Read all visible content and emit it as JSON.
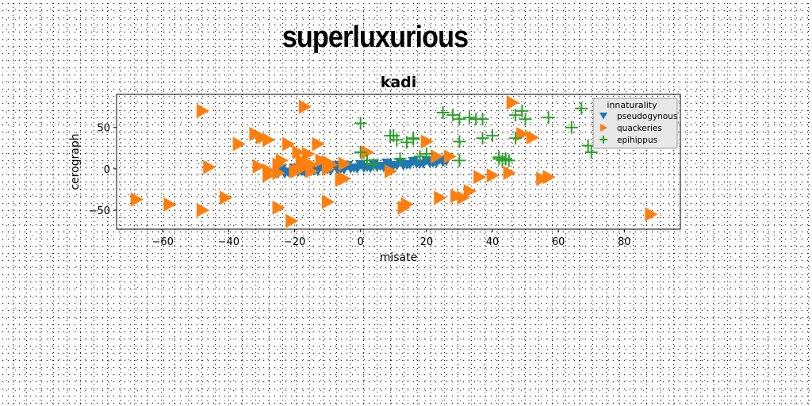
{
  "page": {
    "title": "superluxurious"
  },
  "chart_data": {
    "type": "scatter",
    "title": "kadi",
    "xlabel": "misate",
    "ylabel": "cerograph",
    "xlim": [
      -74,
      97
    ],
    "ylim": [
      -73,
      90
    ],
    "xticks": [
      -60,
      -40,
      -20,
      0,
      20,
      40,
      60,
      80
    ],
    "yticks": [
      -50,
      0,
      50
    ],
    "grid": false,
    "legend": {
      "title": "innaturality",
      "placement": "top-right"
    },
    "series": [
      {
        "name": "pseudogynous",
        "marker": "triangle-down",
        "color": "#1f77b4",
        "x": [
          -25,
          -23,
          -21,
          -19,
          -17,
          -15,
          -13,
          -11,
          -9,
          -7,
          -5,
          -3,
          -1,
          1,
          3,
          5,
          7,
          9,
          11,
          13,
          15,
          17,
          19,
          21,
          23,
          25,
          -24,
          -20,
          -16,
          -12,
          -8,
          -4,
          0,
          4,
          8,
          12,
          16,
          20,
          24,
          -22,
          -18,
          -14,
          -10,
          -6,
          -2,
          2,
          6,
          10,
          14,
          18,
          22,
          26
        ],
        "y": [
          -6,
          -6,
          -5,
          -4,
          -4,
          -3,
          -3,
          -2,
          -2,
          -1,
          -1,
          0,
          0,
          1,
          1,
          2,
          2,
          3,
          4,
          4,
          5,
          6,
          6,
          7,
          7,
          8,
          0,
          1,
          2,
          3,
          4,
          4,
          5,
          6,
          7,
          8,
          9,
          10,
          11,
          -4,
          -3,
          -2,
          -1,
          0,
          1,
          2,
          3,
          4,
          5,
          6,
          7,
          9
        ]
      },
      {
        "name": "quackeries",
        "marker": "triangle-right",
        "color": "#ff7f0e",
        "x": [
          -48,
          -17,
          -68,
          -58,
          -48,
          -41,
          -37,
          -32,
          -30,
          -28,
          -25,
          -22,
          -21,
          -19,
          -18,
          -16,
          -15,
          -13,
          -12,
          -10,
          -9,
          -6,
          -5,
          -15,
          -17,
          -25,
          -28,
          -31,
          -24,
          -20,
          -10,
          2,
          9,
          14,
          20,
          23,
          24,
          27,
          29,
          31,
          33,
          36,
          40,
          45,
          46,
          49,
          52,
          55,
          57,
          88,
          -46,
          -25,
          -19,
          -10,
          -5,
          13,
          -28
        ],
        "y": [
          70,
          75,
          -37,
          -43,
          -50,
          -35,
          30,
          42,
          38,
          35,
          -47,
          30,
          -63,
          20,
          10,
          18,
          5,
          30,
          10,
          -40,
          5,
          -13,
          6,
          -3,
          3,
          -5,
          -8,
          3,
          10,
          -3,
          0,
          20,
          -3,
          -43,
          33,
          15,
          -35,
          15,
          -33,
          -35,
          -27,
          -10,
          -8,
          -5,
          80,
          42,
          38,
          -12,
          -10,
          -55,
          2,
          5,
          -2,
          8,
          -12,
          -47,
          -2
        ]
      },
      {
        "name": "epihippus",
        "marker": "plus",
        "color": "#2ca02c",
        "x": [
          0,
          10,
          11,
          16,
          25,
          28,
          30,
          33,
          35,
          37,
          40,
          42,
          44,
          47,
          49,
          50,
          57,
          64,
          67,
          69,
          70,
          0,
          2,
          4,
          12,
          14,
          16,
          18,
          20,
          30,
          42,
          43,
          44,
          45,
          9,
          37,
          47,
          30
        ],
        "y": [
          55,
          40,
          35,
          36,
          68,
          65,
          60,
          62,
          60,
          37,
          40,
          14,
          12,
          37,
          70,
          60,
          62,
          50,
          73,
          28,
          20,
          20,
          10,
          5,
          12,
          32,
          37,
          15,
          18,
          33,
          12,
          10,
          12,
          10,
          40,
          60,
          65,
          10
        ]
      }
    ]
  }
}
